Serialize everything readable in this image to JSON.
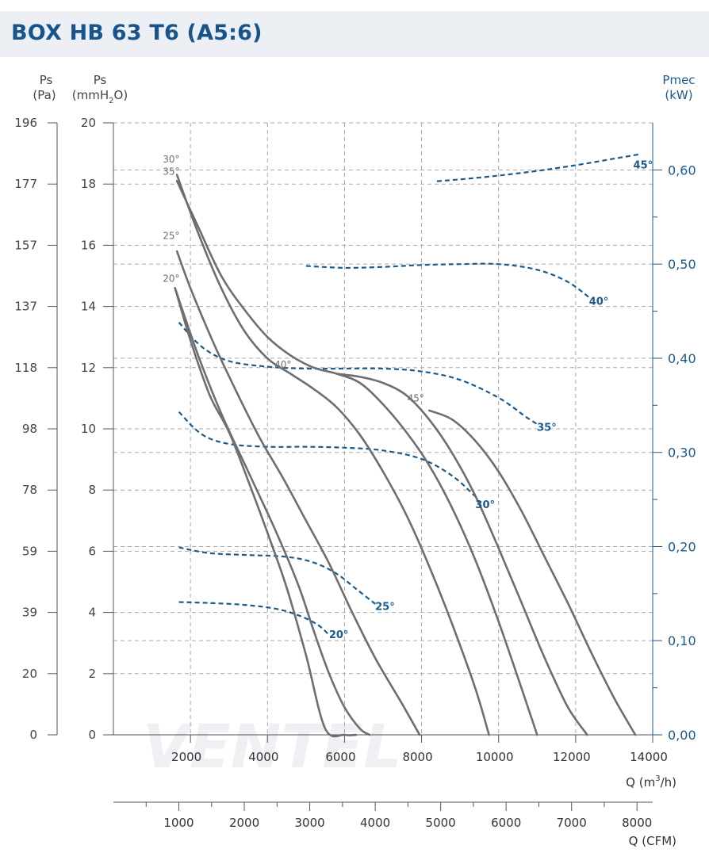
{
  "title": "BOX HB 63 T6 (A5:6)",
  "watermark": "VENTEL",
  "colors": {
    "title": "#17548c",
    "pressure_curves": "#6d6e71",
    "power_curves": "#1a5a8c",
    "grid": "#a7a9ac",
    "axis": "#555555",
    "right_axis": "#1a5a8c",
    "title_bg": "#eceff3",
    "watermark": "#eef0f3"
  },
  "chart_data": {
    "type": "line",
    "title": "BOX HB 63 T6 (A5:6)",
    "grid": true,
    "axes": {
      "y_pa": {
        "label_line1": "Ps",
        "label_line2": "(Pa)",
        "ticks": [
          "0",
          "20",
          "39",
          "59",
          "78",
          "98",
          "118",
          "137",
          "157",
          "177",
          "196"
        ]
      },
      "y_mmh2o": {
        "label_line1": "Ps",
        "label_line2_pre": "(mmH",
        "label_line2_sub": "2",
        "label_line2_post": "O)",
        "range": [
          0,
          20
        ],
        "ticks": [
          "0",
          "2",
          "4",
          "6",
          "8",
          "10",
          "12",
          "14",
          "16",
          "18",
          "20"
        ]
      },
      "y_right": {
        "label_line1": "Pmec",
        "label_line2": "(kW)",
        "range": [
          0,
          0.65
        ],
        "ticks": [
          "0,00",
          "0,10",
          "0,20",
          "0,30",
          "0,40",
          "0,50",
          "0,60"
        ]
      },
      "x_m3h": {
        "label_pre": "Q (m",
        "label_sup": "3",
        "label_post": "/h)",
        "range": [
          0,
          14000
        ],
        "ticks": [
          "2000",
          "4000",
          "6000",
          "8000",
          "10000",
          "12000",
          "14000"
        ]
      },
      "x_cfm": {
        "label": "Q (CFM)",
        "range": [
          0,
          8239.6
        ],
        "ticks": [
          "1000",
          "2000",
          "3000",
          "4000",
          "5000",
          "6000",
          "7000",
          "8000"
        ]
      }
    },
    "pressure_series": [
      {
        "name": "20°",
        "label_at": [
          1500,
          14.8
        ],
        "x": [
          1600,
          2000,
          2500,
          3000,
          3500,
          4000,
          4500,
          5000,
          5500,
          6000,
          6300
        ],
        "y": [
          14.6,
          12.9,
          11.1,
          9.9,
          8.3,
          6.6,
          4.8,
          2.6,
          0.2,
          -0.3,
          -0.3
        ]
      },
      {
        "name": "20°",
        "x": [
          1600,
          2200,
          2800,
          3500,
          4200,
          4800,
          5200,
          5600,
          6000,
          6400,
          6650
        ],
        "y": [
          14.6,
          12.4,
          10.5,
          8.6,
          6.7,
          4.9,
          3.4,
          2.0,
          0.9,
          0.2,
          0.0
        ]
      },
      {
        "name": "25°",
        "label_at": [
          1500,
          16.2
        ],
        "x": [
          1650,
          2000,
          2600,
          3200,
          3800,
          4400,
          5000,
          5600,
          6200,
          6800,
          7500,
          7950
        ],
        "y": [
          15.8,
          14.6,
          12.8,
          11.2,
          9.7,
          8.4,
          7.0,
          5.6,
          4.0,
          2.5,
          1.0,
          0.0
        ]
      },
      {
        "name": "30°",
        "label_at": [
          1500,
          18.7
        ],
        "x": [
          1650,
          2200,
          2800,
          3400,
          4000,
          4600,
          5200,
          5800,
          6400,
          7000,
          7600,
          8200,
          8800,
          9400,
          9750
        ],
        "y": [
          18.3,
          16.4,
          14.6,
          13.2,
          12.3,
          11.8,
          11.3,
          10.7,
          9.8,
          8.6,
          7.2,
          5.5,
          3.6,
          1.5,
          0.0
        ]
      },
      {
        "name": "35°",
        "label_at": [
          1500,
          18.3
        ],
        "x": [
          1650,
          2200,
          2800,
          3400,
          4000,
          4600,
          5200,
          5800,
          6400,
          7000,
          7600,
          8200,
          8800,
          9400,
          10000,
          10600,
          11000
        ],
        "y": [
          18.1,
          16.6,
          15.0,
          13.9,
          13.0,
          12.4,
          12.0,
          11.8,
          11.5,
          10.8,
          9.9,
          8.8,
          7.4,
          5.7,
          3.7,
          1.5,
          0.0
        ]
      },
      {
        "name": "40°",
        "label_at": [
          4400,
          12.0
        ],
        "x": [
          5800,
          6400,
          7000,
          7600,
          8200,
          8800,
          9400,
          10000,
          10600,
          11200,
          11800,
          12300
        ],
        "y": [
          11.8,
          11.7,
          11.5,
          11.1,
          10.3,
          9.2,
          7.8,
          6.1,
          4.3,
          2.5,
          0.9,
          0.0
        ]
      },
      {
        "name": "45°",
        "label_at": [
          7850,
          10.9
        ],
        "x": [
          8200,
          8800,
          9400,
          10000,
          10600,
          11200,
          11800,
          12400,
          13000,
          13550
        ],
        "y": [
          10.6,
          10.3,
          9.6,
          8.6,
          7.3,
          5.8,
          4.3,
          2.7,
          1.2,
          0.0
        ]
      }
    ],
    "power_series": [
      {
        "name": "20°",
        "label_at": [
          5850,
          0.107
        ],
        "x": [
          1700,
          2500,
          3400,
          4200,
          4800,
          5300,
          5600
        ],
        "y": [
          0.141,
          0.14,
          0.138,
          0.134,
          0.127,
          0.117,
          0.106
        ]
      },
      {
        "name": "25°",
        "label_at": [
          7050,
          0.137
        ],
        "x": [
          1700,
          2500,
          3500,
          4500,
          5200,
          5800,
          6300,
          6800
        ],
        "y": [
          0.199,
          0.193,
          0.191,
          0.189,
          0.183,
          0.171,
          0.155,
          0.139
        ]
      },
      {
        "name": "30°",
        "label_at": [
          9650,
          0.245
        ],
        "x": [
          1700,
          2300,
          3000,
          4000,
          5000,
          6000,
          7000,
          8000,
          8800,
          9400
        ],
        "y": [
          0.343,
          0.319,
          0.309,
          0.306,
          0.306,
          0.305,
          0.302,
          0.293,
          0.275,
          0.253
        ]
      },
      {
        "name": "35°",
        "label_at": [
          11250,
          0.327
        ],
        "x": [
          1700,
          2300,
          3000,
          4000,
          5000,
          6000,
          7000,
          8000,
          9000,
          10000,
          10700,
          11000
        ],
        "y": [
          0.438,
          0.412,
          0.397,
          0.391,
          0.389,
          0.389,
          0.389,
          0.386,
          0.377,
          0.358,
          0.338,
          0.33
        ]
      },
      {
        "name": "40°",
        "label_at": [
          12600,
          0.461
        ],
        "x": [
          5000,
          6000,
          7000,
          8000,
          9000,
          10000,
          11000,
          11800,
          12400
        ],
        "y": [
          0.498,
          0.496,
          0.497,
          0.499,
          0.5,
          0.5,
          0.494,
          0.481,
          0.463
        ]
      },
      {
        "name": "45°",
        "label_at": [
          13750,
          0.606
        ],
        "x": [
          8400,
          9000,
          10000,
          11000,
          12000,
          13000,
          13700
        ],
        "y": [
          0.588,
          0.59,
          0.594,
          0.599,
          0.605,
          0.612,
          0.617
        ]
      }
    ]
  }
}
